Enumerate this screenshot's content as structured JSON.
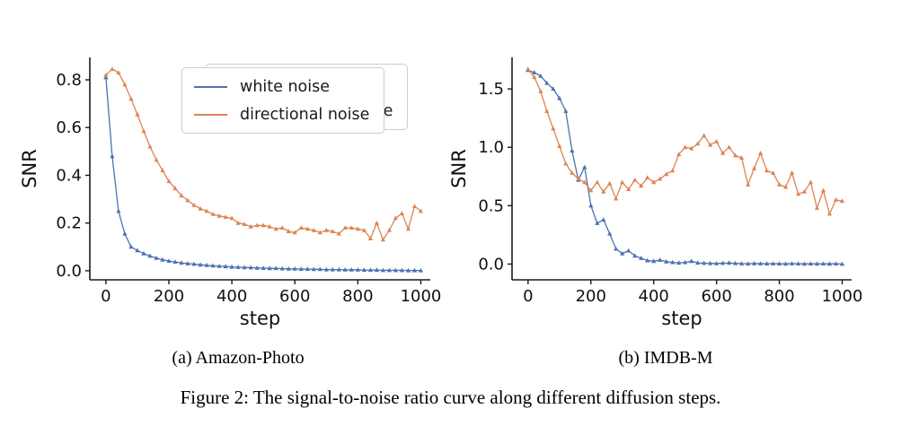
{
  "figure": {
    "subcaption_a": "(a) Amazon-Photo",
    "subcaption_b": "(b) IMDB-M",
    "caption": "Figure 2: The signal-to-noise ratio curve along different diffusion steps."
  },
  "style": {
    "axis_color": "#1a1a1a",
    "white_noise_color": "#4C72B0",
    "directional_noise_color": "#DD8452",
    "legend_border_color": "#cccccc"
  },
  "chart_data": [
    {
      "type": "line",
      "title": "(a) Amazon-Photo",
      "xlabel": "step",
      "ylabel": "SNR",
      "grid": false,
      "legend_position": "upper right",
      "marker": "triangle",
      "xlim": [
        -51,
        1030
      ],
      "ylim": [
        -0.038,
        0.894
      ],
      "xticks": [
        0,
        200,
        400,
        600,
        800,
        1000
      ],
      "yticks": [
        0.0,
        0.2,
        0.4,
        0.6,
        0.8
      ],
      "ytick_labels": [
        "0.0",
        "0.2",
        "0.4",
        "0.6",
        "0.8"
      ],
      "x": [
        0,
        20,
        40,
        60,
        80,
        100,
        120,
        140,
        160,
        180,
        200,
        220,
        240,
        260,
        280,
        300,
        320,
        340,
        360,
        380,
        400,
        420,
        440,
        460,
        480,
        500,
        520,
        540,
        560,
        580,
        600,
        620,
        640,
        660,
        680,
        700,
        720,
        740,
        760,
        780,
        800,
        820,
        840,
        860,
        880,
        900,
        920,
        940,
        960,
        980,
        1000
      ],
      "series": [
        {
          "name": "white noise",
          "color": "#4C72B0",
          "values": [
            0.81,
            0.48,
            0.25,
            0.155,
            0.1,
            0.085,
            0.072,
            0.062,
            0.053,
            0.046,
            0.041,
            0.037,
            0.033,
            0.03,
            0.028,
            0.025,
            0.023,
            0.021,
            0.019,
            0.018,
            0.016,
            0.015,
            0.014,
            0.013,
            0.012,
            0.011,
            0.01,
            0.01,
            0.009,
            0.008,
            0.008,
            0.007,
            0.007,
            0.006,
            0.006,
            0.005,
            0.005,
            0.005,
            0.004,
            0.004,
            0.004,
            0.003,
            0.003,
            0.003,
            0.002,
            0.002,
            0.002,
            0.002,
            0.001,
            0.001,
            0.001
          ]
        },
        {
          "name": "directional noise",
          "color": "#DD8452",
          "values": [
            0.82,
            0.845,
            0.83,
            0.78,
            0.72,
            0.655,
            0.585,
            0.52,
            0.465,
            0.42,
            0.375,
            0.345,
            0.315,
            0.295,
            0.275,
            0.26,
            0.25,
            0.237,
            0.23,
            0.225,
            0.22,
            0.2,
            0.195,
            0.185,
            0.19,
            0.19,
            0.185,
            0.175,
            0.18,
            0.165,
            0.16,
            0.18,
            0.175,
            0.17,
            0.16,
            0.17,
            0.165,
            0.155,
            0.18,
            0.18,
            0.175,
            0.17,
            0.135,
            0.2,
            0.13,
            0.17,
            0.22,
            0.24,
            0.175,
            0.27,
            0.25
          ]
        }
      ]
    },
    {
      "type": "line",
      "title": "(b) IMDB-M",
      "xlabel": "step",
      "ylabel": "SNR",
      "grid": false,
      "legend_position": "upper right",
      "marker": "triangle",
      "xlim": [
        -51,
        1030
      ],
      "ylim": [
        -0.135,
        1.77
      ],
      "xticks": [
        0,
        200,
        400,
        600,
        800,
        1000
      ],
      "yticks": [
        0.0,
        0.5,
        1.0,
        1.5
      ],
      "ytick_labels": [
        "0.0",
        "0.5",
        "1.0",
        "1.5"
      ],
      "x": [
        0,
        20,
        40,
        60,
        80,
        100,
        120,
        140,
        160,
        180,
        200,
        220,
        240,
        260,
        280,
        300,
        320,
        340,
        360,
        380,
        400,
        420,
        440,
        460,
        480,
        500,
        520,
        540,
        560,
        580,
        600,
        620,
        640,
        660,
        680,
        700,
        720,
        740,
        760,
        780,
        800,
        820,
        840,
        860,
        880,
        900,
        920,
        940,
        960,
        980,
        1000
      ],
      "series": [
        {
          "name": "white noise",
          "color": "#4C72B0",
          "values": [
            1.66,
            1.64,
            1.61,
            1.55,
            1.5,
            1.42,
            1.31,
            0.97,
            0.72,
            0.83,
            0.5,
            0.35,
            0.38,
            0.26,
            0.13,
            0.09,
            0.115,
            0.07,
            0.05,
            0.03,
            0.025,
            0.035,
            0.02,
            0.015,
            0.01,
            0.015,
            0.025,
            0.01,
            0.008,
            0.006,
            0.005,
            0.008,
            0.01,
            0.006,
            0.004,
            0.003,
            0.005,
            0.004,
            0.003,
            0.004,
            0.003,
            0.002,
            0.004,
            0.003,
            0.002,
            0.003,
            0.002,
            0.003,
            0.002,
            0.003,
            0.0
          ]
        },
        {
          "name": "directional noise",
          "color": "#DD8452",
          "values": [
            1.67,
            1.6,
            1.48,
            1.31,
            1.16,
            1.01,
            0.86,
            0.78,
            0.73,
            0.7,
            0.63,
            0.7,
            0.62,
            0.69,
            0.56,
            0.7,
            0.64,
            0.72,
            0.67,
            0.74,
            0.7,
            0.73,
            0.77,
            0.8,
            0.94,
            1.0,
            0.99,
            1.03,
            1.1,
            1.02,
            1.05,
            0.95,
            1.0,
            0.93,
            0.91,
            0.68,
            0.82,
            0.95,
            0.8,
            0.78,
            0.68,
            0.66,
            0.78,
            0.6,
            0.62,
            0.7,
            0.48,
            0.63,
            0.43,
            0.55,
            0.54
          ]
        }
      ]
    }
  ]
}
